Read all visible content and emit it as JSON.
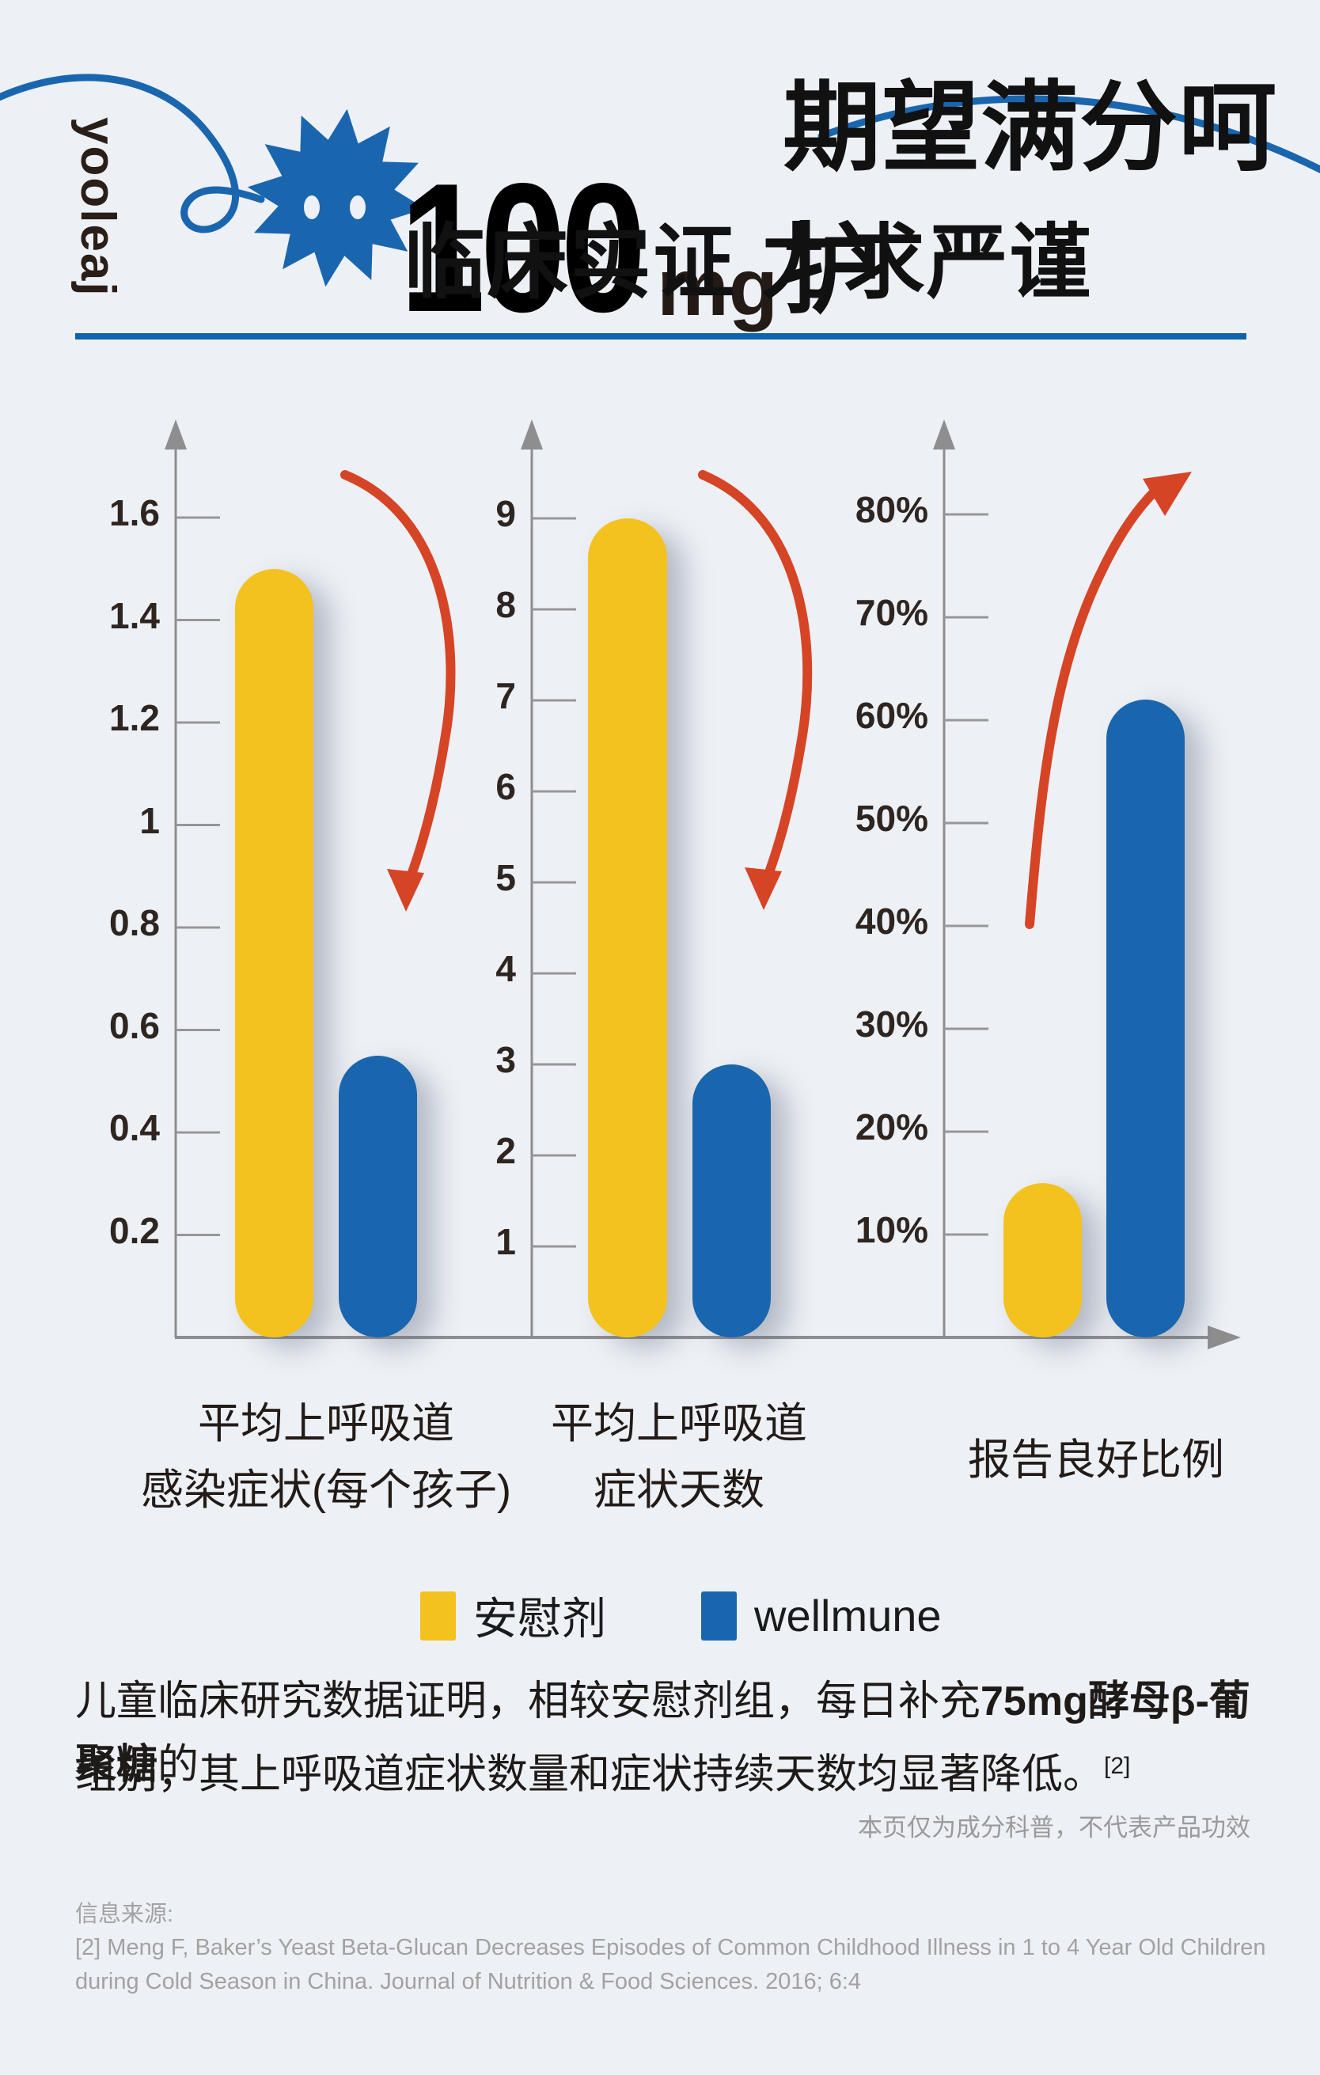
{
  "brand": {
    "logo_text": "yooleaj"
  },
  "header": {
    "title_number": "100",
    "title_unit": "mg",
    "title_line1_rest": "期望满分呵护",
    "title_line2": "临床实证 力求严谨"
  },
  "chart_data": {
    "type": "bar",
    "grid": false,
    "legend_position": "bottom",
    "series_names": [
      "安慰剂",
      "wellmune"
    ],
    "charts": [
      {
        "category_lines": [
          "平均上呼吸道",
          "感染症状(每个孩子)"
        ],
        "ylim": [
          0,
          1.7
        ],
        "tick_values": [
          1.6,
          1.4,
          1.2,
          1.0,
          0.8,
          0.6,
          0.4,
          0.2
        ],
        "tick_labels": [
          "1.6",
          "1.4",
          "1.2",
          "1",
          "0.8",
          "0.6",
          "0.4",
          "0.2"
        ],
        "values": [
          1.5,
          0.55
        ],
        "trend_arrow": "down"
      },
      {
        "category_lines": [
          "平均上呼吸道",
          "症状天数"
        ],
        "ylim": [
          0,
          9.5
        ],
        "tick_values": [
          9,
          8,
          7,
          6,
          5,
          4,
          3,
          2,
          1
        ],
        "tick_labels": [
          "9",
          "8",
          "7",
          "6",
          "5",
          "4",
          "3",
          "2",
          "1"
        ],
        "values": [
          9,
          3
        ],
        "trend_arrow": "down"
      },
      {
        "category_lines": [
          "报告良好比例"
        ],
        "ylim": [
          0,
          85
        ],
        "tick_values": [
          80,
          70,
          60,
          50,
          40,
          30,
          20,
          10
        ],
        "tick_labels": [
          "80%",
          "70%",
          "60%",
          "50%",
          "40%",
          "30%",
          "20%",
          "10%"
        ],
        "values": [
          15,
          62
        ],
        "trend_arrow": "up"
      }
    ],
    "legend": [
      {
        "label": "安慰剂",
        "color": "#F3C21E"
      },
      {
        "label": "wellmune",
        "color": "#1A66AE"
      }
    ]
  },
  "body": {
    "line1_pre": "儿童临床研究数据证明，相较安慰剂组，每日补充",
    "line1_bold": "75mg酵母β-葡聚糖",
    "line1_post": "的",
    "line2": "组别，其上呼吸道症状数量和症状持续天数均显著降低。",
    "line2_ref": "[2]"
  },
  "footnote": "本页仅为成分科普，不代表产品功效",
  "sources": {
    "heading": "信息来源:",
    "lines": [
      "[2] Meng F, Baker’s Yeast Beta-Glucan Decreases Episodes of Common Childhood Illness in 1 to 4 Year Old Children",
      "during Cold Season in China. Journal of Nutrition & Food Sciences. 2016; 6:4"
    ]
  },
  "colors": {
    "background": "#EDF0F5",
    "placebo_yellow": "#F3C21E",
    "wellmune_blue": "#1A66AE",
    "arrow_red": "#D64426",
    "axis_gray": "#8E8E8E",
    "brand_blue": "#1A66AE",
    "divider_blue": "#0E63AE",
    "text_dark": "#231B17",
    "muted_gray": "#9A9A9A"
  }
}
